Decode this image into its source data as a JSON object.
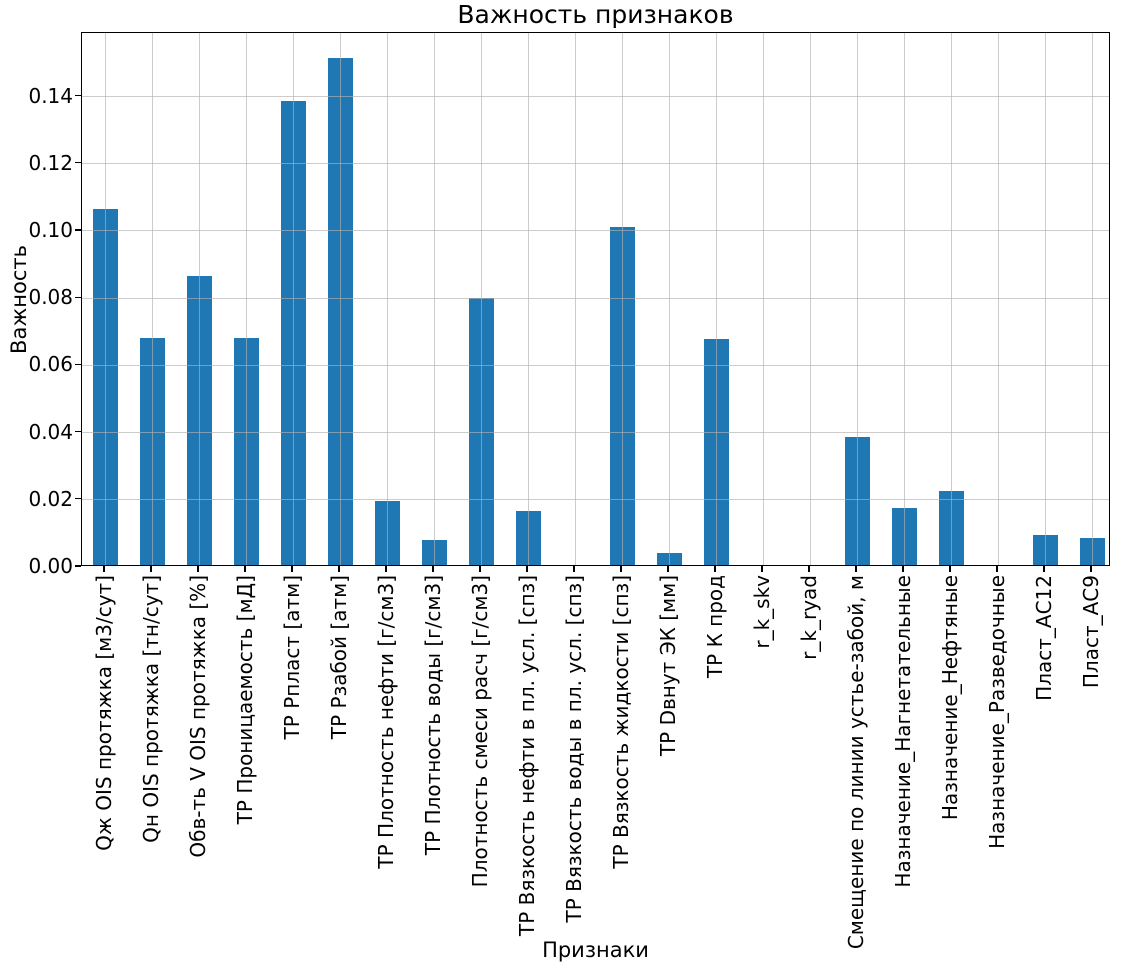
{
  "chart_data": {
    "type": "bar",
    "title": "Важность признаков",
    "xlabel": "Признаки",
    "ylabel": "Важность",
    "categories": [
      "Qж OIS протяжка [м3/сут]",
      "Qн OIS протяжка [тн/сут]",
      "Обв-ть V OIS протяжка [%]",
      "ТР Проницаемость [мД]",
      "ТР Рпласт [атм]",
      "ТР Рзабой [атм]",
      "ТР Плотность нефти [г/см3]",
      "ТР Плотность воды [г/см3]",
      "Плотность смеси расч [г/см3]",
      "ТР Вязкость нефти в пл. усл. [спз]",
      "ТР Вязкость воды в пл. усл. [спз]",
      "ТР Вязкость жидкости [спз]",
      "ТР Dвнут ЭК [мм]",
      "ТР К прод",
      "r_k_skv",
      "r_k_ryad",
      "Смещение по линии устье-забой, м",
      "Назначение_Нагнетательные",
      "Назначение_Нефтяные",
      "Назначение_Разведочные",
      "Пласт_АС12",
      "Пласт_АС9"
    ],
    "values": [
      0.106,
      0.0675,
      0.086,
      0.0675,
      0.138,
      0.151,
      0.019,
      0.0075,
      0.0795,
      0.016,
      0.0,
      0.1005,
      0.0035,
      0.0673,
      0.0,
      0.0,
      0.038,
      0.017,
      0.022,
      0.0,
      0.009,
      0.008
    ],
    "ylim": [
      0,
      0.1589
    ],
    "yticks": [
      0.0,
      0.02,
      0.04,
      0.06,
      0.08,
      0.1,
      0.12,
      0.14
    ],
    "ytick_labels": [
      "0.00",
      "0.02",
      "0.04",
      "0.06",
      "0.08",
      "0.10",
      "0.12",
      "0.14"
    ],
    "bar_color": "#1f77b4",
    "grid_color": "#b0b0b0",
    "grid": true,
    "legend": false
  }
}
